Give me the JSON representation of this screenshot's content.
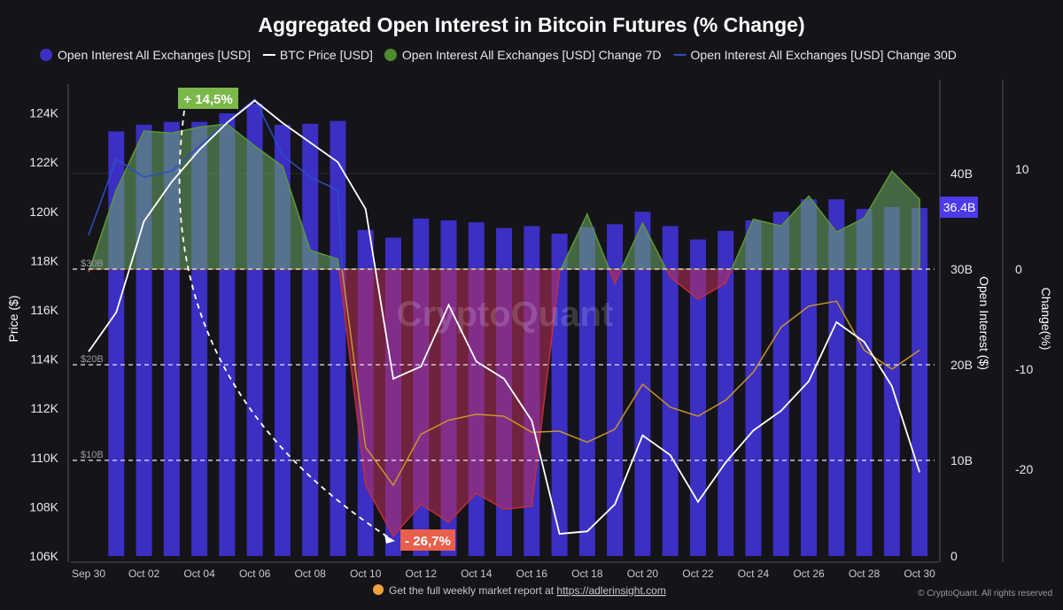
{
  "chart_data": {
    "type": "bar",
    "title": "Aggregated Open Interest in Bitcoin Futures (% Change)",
    "legend": [
      {
        "label": "Open Interest All Exchanges [USD]",
        "color": "#3b2fc4",
        "marker": "dot"
      },
      {
        "label": "BTC Price [USD]",
        "color": "#ffffff",
        "marker": "line"
      },
      {
        "label": "Open Interest All Exchanges [USD] Change 7D",
        "color": "#4f8a2e",
        "marker": "dot"
      },
      {
        "label": "Open Interest All Exchanges [USD] Change 30D",
        "color": "#2a4fc8",
        "marker": "line"
      }
    ],
    "legend_position": "top",
    "x_tick_labels": [
      "Sep 30",
      "Oct 02",
      "Oct 04",
      "Oct 06",
      "Oct 08",
      "Oct 10",
      "Oct 12",
      "Oct 14",
      "Oct 16",
      "Oct 18",
      "Oct 20",
      "Oct 22",
      "Oct 24",
      "Oct 26",
      "Oct 28",
      "Oct 30"
    ],
    "days": [
      "Sep 30",
      "Oct 01",
      "Oct 02",
      "Oct 03",
      "Oct 04",
      "Oct 05",
      "Oct 06",
      "Oct 07",
      "Oct 08",
      "Oct 09",
      "Oct 10",
      "Oct 11",
      "Oct 12",
      "Oct 13",
      "Oct 14",
      "Oct 15",
      "Oct 16",
      "Oct 17",
      "Oct 18",
      "Oct 19",
      "Oct 20",
      "Oct 21",
      "Oct 22",
      "Oct 23",
      "Oct 24",
      "Oct 25",
      "Oct 26",
      "Oct 27",
      "Oct 28",
      "Oct 29",
      "Oct 30"
    ],
    "y_left": {
      "label": "Price ($)",
      "ticks": [
        "106K",
        "108K",
        "110K",
        "112K",
        "114K",
        "116K",
        "118K",
        "120K",
        "122K",
        "124K"
      ],
      "range": [
        106,
        124.8
      ]
    },
    "y_right1": {
      "label": "Open Interest ($)",
      "ticks": [
        "0",
        "10B",
        "20B",
        "30B",
        "40B"
      ],
      "range": [
        0,
        46.5
      ]
    },
    "y_right2": {
      "label": "Change(%)",
      "ticks": [
        "10",
        "0",
        "-10",
        "-20"
      ],
      "range": [
        -28.4,
        27.7
      ]
    },
    "series": [
      {
        "name": "Open Interest All Exchanges [USD]",
        "unit": "B USD",
        "values": [
          null,
          44.4,
          45.1,
          45.4,
          45.4,
          46.3,
          47.3,
          45.1,
          45.2,
          45.5,
          34.1,
          33.3,
          35.3,
          35.1,
          34.9,
          34.3,
          34.5,
          33.7,
          34.4,
          34.7,
          36.0,
          34.5,
          33.1,
          34.0,
          35.1,
          36.0,
          37.3,
          37.3,
          36.3,
          36.5,
          36.4
        ]
      },
      {
        "name": "BTC Price [USD]",
        "unit": "K USD",
        "values": [
          114.3,
          115.9,
          119.6,
          121.2,
          122.5,
          123.6,
          124.5,
          123.6,
          122.8,
          122.0,
          120.1,
          113.2,
          113.7,
          116.2,
          113.9,
          113.2,
          111.5,
          106.9,
          107.0,
          108.1,
          110.9,
          110.1,
          108.2,
          109.8,
          111.1,
          111.9,
          113.1,
          115.5,
          114.7,
          112.9,
          109.4
        ]
      },
      {
        "name": "Open Interest All Exchanges [USD] Change 7D",
        "unit": "%",
        "values": [
          -0.3,
          7.9,
          13.8,
          13.6,
          14.2,
          14.5,
          12.3,
          10.3,
          1.9,
          1.0,
          -21.6,
          -26.7,
          -23.5,
          -25.3,
          -22.4,
          -24.0,
          -23.7,
          -0.3,
          5.5,
          -1.4,
          4.6,
          -0.8,
          -3.0,
          -1.4,
          5.0,
          4.3,
          7.3,
          3.7,
          5.1,
          9.8,
          7.0
        ]
      },
      {
        "name": "Open Interest All Exchanges [USD] Change 30D",
        "unit": "%",
        "values": [
          3.4,
          11.0,
          9.2,
          9.8,
          12.3,
          14.7,
          17.0,
          11.4,
          9.2,
          7.9,
          -17.8,
          -21.6,
          -16.5,
          -15.1,
          -14.5,
          -14.7,
          -16.3,
          -16.2,
          -17.3,
          -16.0,
          -11.5,
          -13.8,
          -14.7,
          -13.1,
          -10.3,
          -5.8,
          -3.7,
          -3.2,
          -8.1,
          -10.0,
          -8.1
        ]
      }
    ],
    "reference_lines": [
      {
        "label": "$10B",
        "value": 10
      },
      {
        "label": "$20B",
        "value": 20
      },
      {
        "label": "$30B",
        "value": 30
      }
    ],
    "current_value_badge": "36.4B",
    "annotations": [
      {
        "text": "+ 14,5%",
        "color": "#7bb84a"
      },
      {
        "text": "- 26,7%",
        "color": "#e8604c"
      }
    ],
    "watermark": "CryptoQuant"
  },
  "footer": {
    "promo_text": "Get the full weekly market report at ",
    "promo_link": "https://adlerinsight.com",
    "copyright": "© CryptoQuant. All rights reserved"
  }
}
